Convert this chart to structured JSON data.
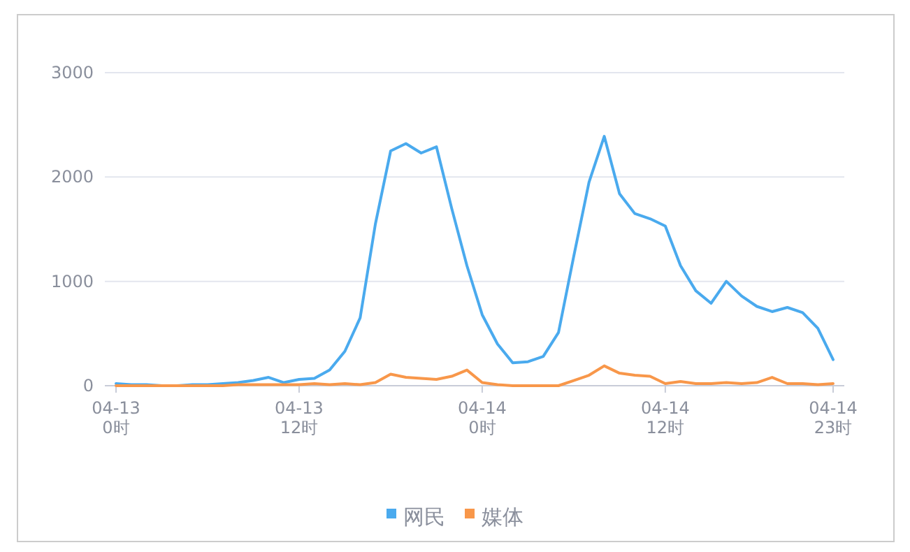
{
  "chart_data": {
    "type": "line",
    "categories": [
      "04-13\n0时",
      null,
      null,
      null,
      null,
      null,
      null,
      null,
      null,
      null,
      null,
      null,
      "04-13\n12时",
      null,
      null,
      null,
      null,
      null,
      null,
      null,
      null,
      null,
      null,
      null,
      "04-14\n0时",
      null,
      null,
      null,
      null,
      null,
      null,
      null,
      null,
      null,
      null,
      null,
      "04-14\n12时",
      null,
      null,
      null,
      null,
      null,
      null,
      null,
      null,
      null,
      null,
      "04-14\n23时"
    ],
    "ylim": [
      0,
      3000
    ],
    "yticks": [
      0,
      1000,
      2000,
      3000
    ],
    "grid": "y",
    "legend": "bottom",
    "marker": "none",
    "line_style": "solid",
    "series": [
      {
        "name": "网民",
        "color": "#4aaaee",
        "values": [
          20,
          10,
          10,
          0,
          0,
          10,
          10,
          20,
          30,
          50,
          80,
          30,
          60,
          70,
          150,
          330,
          650,
          1550,
          2250,
          2320,
          2230,
          2290,
          1700,
          1150,
          680,
          400,
          220,
          230,
          280,
          510,
          1240,
          1950,
          2390,
          1840,
          1650,
          1600,
          1530,
          1150,
          910,
          790,
          1000,
          860,
          760,
          710,
          750,
          700,
          550,
          250
        ]
      },
      {
        "name": "媒体",
        "color": "#f8974a",
        "values": [
          0,
          0,
          0,
          0,
          0,
          0,
          0,
          0,
          10,
          10,
          10,
          10,
          10,
          20,
          10,
          20,
          10,
          30,
          110,
          80,
          70,
          60,
          90,
          150,
          30,
          10,
          0,
          0,
          0,
          0,
          50,
          100,
          190,
          120,
          100,
          90,
          20,
          40,
          20,
          20,
          30,
          20,
          30,
          80,
          20,
          20,
          10,
          20
        ]
      }
    ]
  }
}
